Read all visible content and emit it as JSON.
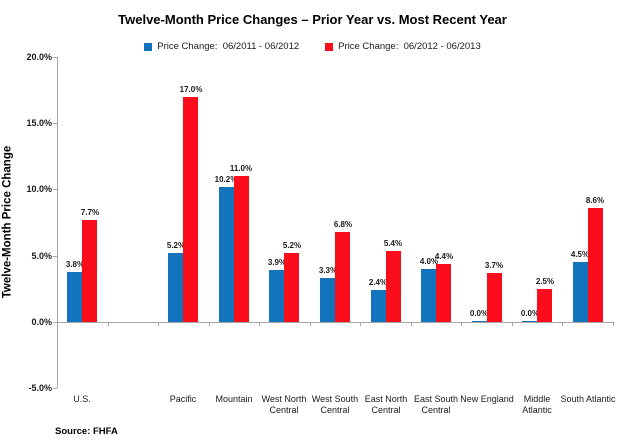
{
  "title": "Twelve-Month Price Changes – Prior Year vs. Most Recent Year",
  "source": "Source: FHFA",
  "chart_data": {
    "type": "bar",
    "title": "Twelve-Month Price Changes – Prior Year vs. Most Recent Year",
    "xlabel": "",
    "ylabel": "Twelve-Month Price Change",
    "ylim": [
      -5,
      20
    ],
    "ytick_step": 5,
    "ytick_labels": [
      "20.0%",
      "15.0%",
      "10.0%",
      "5.0%",
      "0.0%",
      "-5.0%"
    ],
    "grid": false,
    "legend_position": "top",
    "data_labels": true,
    "data_label_format": "0.0%",
    "axis_color": "#a6a6a6",
    "categories": [
      "U.S.",
      "",
      "Pacific",
      "Mountain",
      "West North Central",
      "West South Central",
      "East North Central",
      "East South Central",
      "New England",
      "Middle Atlantic",
      "South Atlantic"
    ],
    "series": [
      {
        "name": "Price Change:  06/2011 - 06/2012",
        "color": "#1274BC",
        "values": [
          3.8,
          null,
          5.2,
          10.2,
          3.9,
          3.3,
          2.4,
          4.0,
          0.0,
          0.0,
          4.5
        ]
      },
      {
        "name": "Price Change:  06/2012 - 06/2013",
        "color": "#FC0D1B",
        "values": [
          7.7,
          null,
          17.0,
          11.0,
          5.2,
          6.8,
          5.4,
          4.4,
          3.7,
          2.5,
          8.6
        ]
      }
    ]
  }
}
